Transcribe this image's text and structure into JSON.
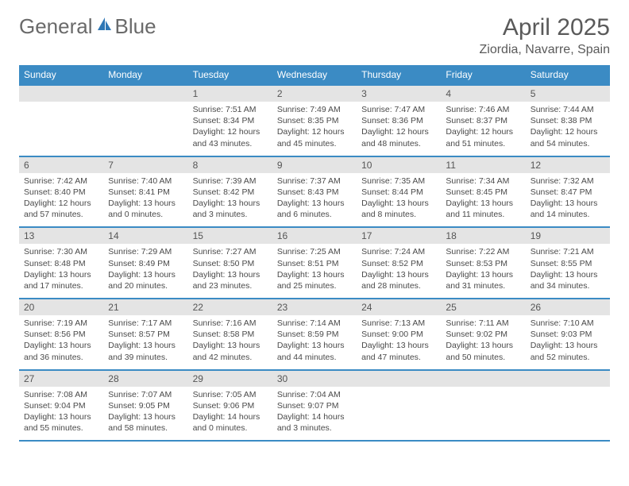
{
  "brand": {
    "part1": "General",
    "part2": "Blue"
  },
  "title": {
    "month": "April 2025",
    "location": "Ziordia, Navarre, Spain"
  },
  "colors": {
    "header_bg": "#3b8bc4",
    "header_fg": "#ffffff",
    "daynum_bg": "#e4e4e4",
    "rule": "#3b8bc4"
  },
  "columns": [
    "Sunday",
    "Monday",
    "Tuesday",
    "Wednesday",
    "Thursday",
    "Friday",
    "Saturday"
  ],
  "weeks": [
    [
      null,
      null,
      {
        "n": "1",
        "sr": "7:51 AM",
        "ss": "8:34 PM",
        "dl": "12 hours and 43 minutes."
      },
      {
        "n": "2",
        "sr": "7:49 AM",
        "ss": "8:35 PM",
        "dl": "12 hours and 45 minutes."
      },
      {
        "n": "3",
        "sr": "7:47 AM",
        "ss": "8:36 PM",
        "dl": "12 hours and 48 minutes."
      },
      {
        "n": "4",
        "sr": "7:46 AM",
        "ss": "8:37 PM",
        "dl": "12 hours and 51 minutes."
      },
      {
        "n": "5",
        "sr": "7:44 AM",
        "ss": "8:38 PM",
        "dl": "12 hours and 54 minutes."
      }
    ],
    [
      {
        "n": "6",
        "sr": "7:42 AM",
        "ss": "8:40 PM",
        "dl": "12 hours and 57 minutes."
      },
      {
        "n": "7",
        "sr": "7:40 AM",
        "ss": "8:41 PM",
        "dl": "13 hours and 0 minutes."
      },
      {
        "n": "8",
        "sr": "7:39 AM",
        "ss": "8:42 PM",
        "dl": "13 hours and 3 minutes."
      },
      {
        "n": "9",
        "sr": "7:37 AM",
        "ss": "8:43 PM",
        "dl": "13 hours and 6 minutes."
      },
      {
        "n": "10",
        "sr": "7:35 AM",
        "ss": "8:44 PM",
        "dl": "13 hours and 8 minutes."
      },
      {
        "n": "11",
        "sr": "7:34 AM",
        "ss": "8:45 PM",
        "dl": "13 hours and 11 minutes."
      },
      {
        "n": "12",
        "sr": "7:32 AM",
        "ss": "8:47 PM",
        "dl": "13 hours and 14 minutes."
      }
    ],
    [
      {
        "n": "13",
        "sr": "7:30 AM",
        "ss": "8:48 PM",
        "dl": "13 hours and 17 minutes."
      },
      {
        "n": "14",
        "sr": "7:29 AM",
        "ss": "8:49 PM",
        "dl": "13 hours and 20 minutes."
      },
      {
        "n": "15",
        "sr": "7:27 AM",
        "ss": "8:50 PM",
        "dl": "13 hours and 23 minutes."
      },
      {
        "n": "16",
        "sr": "7:25 AM",
        "ss": "8:51 PM",
        "dl": "13 hours and 25 minutes."
      },
      {
        "n": "17",
        "sr": "7:24 AM",
        "ss": "8:52 PM",
        "dl": "13 hours and 28 minutes."
      },
      {
        "n": "18",
        "sr": "7:22 AM",
        "ss": "8:53 PM",
        "dl": "13 hours and 31 minutes."
      },
      {
        "n": "19",
        "sr": "7:21 AM",
        "ss": "8:55 PM",
        "dl": "13 hours and 34 minutes."
      }
    ],
    [
      {
        "n": "20",
        "sr": "7:19 AM",
        "ss": "8:56 PM",
        "dl": "13 hours and 36 minutes."
      },
      {
        "n": "21",
        "sr": "7:17 AM",
        "ss": "8:57 PM",
        "dl": "13 hours and 39 minutes."
      },
      {
        "n": "22",
        "sr": "7:16 AM",
        "ss": "8:58 PM",
        "dl": "13 hours and 42 minutes."
      },
      {
        "n": "23",
        "sr": "7:14 AM",
        "ss": "8:59 PM",
        "dl": "13 hours and 44 minutes."
      },
      {
        "n": "24",
        "sr": "7:13 AM",
        "ss": "9:00 PM",
        "dl": "13 hours and 47 minutes."
      },
      {
        "n": "25",
        "sr": "7:11 AM",
        "ss": "9:02 PM",
        "dl": "13 hours and 50 minutes."
      },
      {
        "n": "26",
        "sr": "7:10 AM",
        "ss": "9:03 PM",
        "dl": "13 hours and 52 minutes."
      }
    ],
    [
      {
        "n": "27",
        "sr": "7:08 AM",
        "ss": "9:04 PM",
        "dl": "13 hours and 55 minutes."
      },
      {
        "n": "28",
        "sr": "7:07 AM",
        "ss": "9:05 PM",
        "dl": "13 hours and 58 minutes."
      },
      {
        "n": "29",
        "sr": "7:05 AM",
        "ss": "9:06 PM",
        "dl": "14 hours and 0 minutes."
      },
      {
        "n": "30",
        "sr": "7:04 AM",
        "ss": "9:07 PM",
        "dl": "14 hours and 3 minutes."
      },
      null,
      null,
      null
    ]
  ],
  "labels": {
    "sunrise": "Sunrise:",
    "sunset": "Sunset:",
    "daylight": "Daylight:"
  }
}
